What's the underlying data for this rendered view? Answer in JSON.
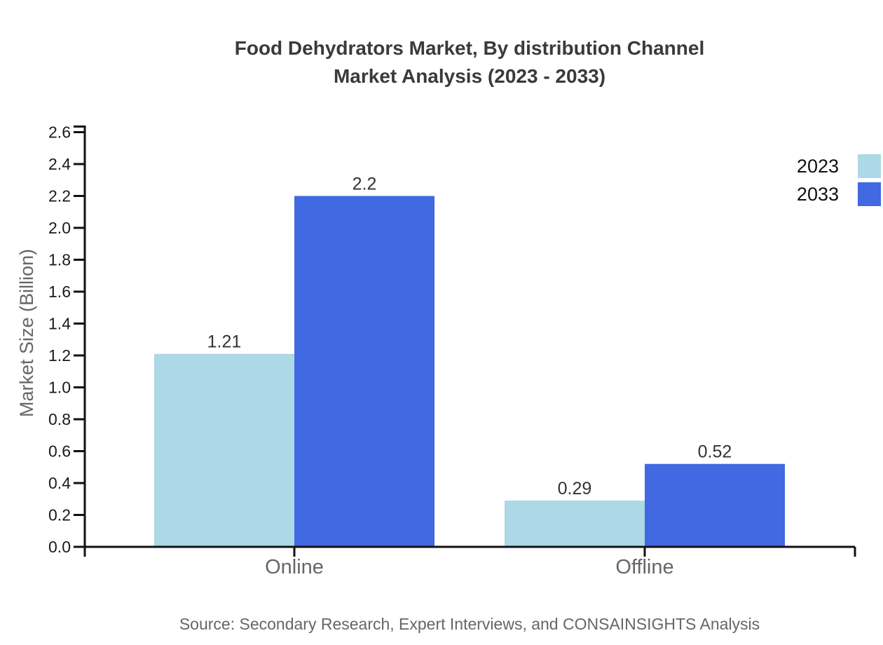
{
  "title": {
    "line1": "Food Dehydrators Market, By distribution Channel",
    "line2": "Market Analysis (2023 - 2033)"
  },
  "chart_data": {
    "type": "bar",
    "title": "Food Dehydrators Market, By distribution Channel Market Analysis (2023 - 2033)",
    "categories": [
      "Online",
      "Offline"
    ],
    "series": [
      {
        "name": "2023",
        "color": "#ADD8E6",
        "values": [
          1.21,
          0.29
        ]
      },
      {
        "name": "2033",
        "color": "#4169E1",
        "values": [
          2.2,
          0.52
        ]
      }
    ],
    "xlabel": "",
    "ylabel": "Market Size (Billion)",
    "ylim": [
      0,
      2.6
    ],
    "ytick_step": 0.2,
    "yticks": [
      "0.0",
      "0.2",
      "0.4",
      "0.6",
      "0.8",
      "1.0",
      "1.2",
      "1.4",
      "1.6",
      "1.8",
      "2.0",
      "2.2",
      "2.4",
      "2.6"
    ],
    "grid": false,
    "legend_position": "top-right",
    "bar_value_labels": [
      "1.21",
      "2.2",
      "0.29",
      "0.52"
    ]
  },
  "footer": {
    "source": "Source: Secondary Research, Expert Interviews, and CONSAINSIGHTS Analysis"
  },
  "colors": {
    "series_2023": "#ADD8E6",
    "series_2033": "#4169E1",
    "axis": "#111111",
    "tick_label": "#1a1a1a",
    "value_label": "#333333",
    "category_label": "#666666",
    "ylabel": "#666666",
    "title": "#3a3a3a",
    "legend_label": "#111111",
    "source": "#666666",
    "background": "#ffffff"
  }
}
